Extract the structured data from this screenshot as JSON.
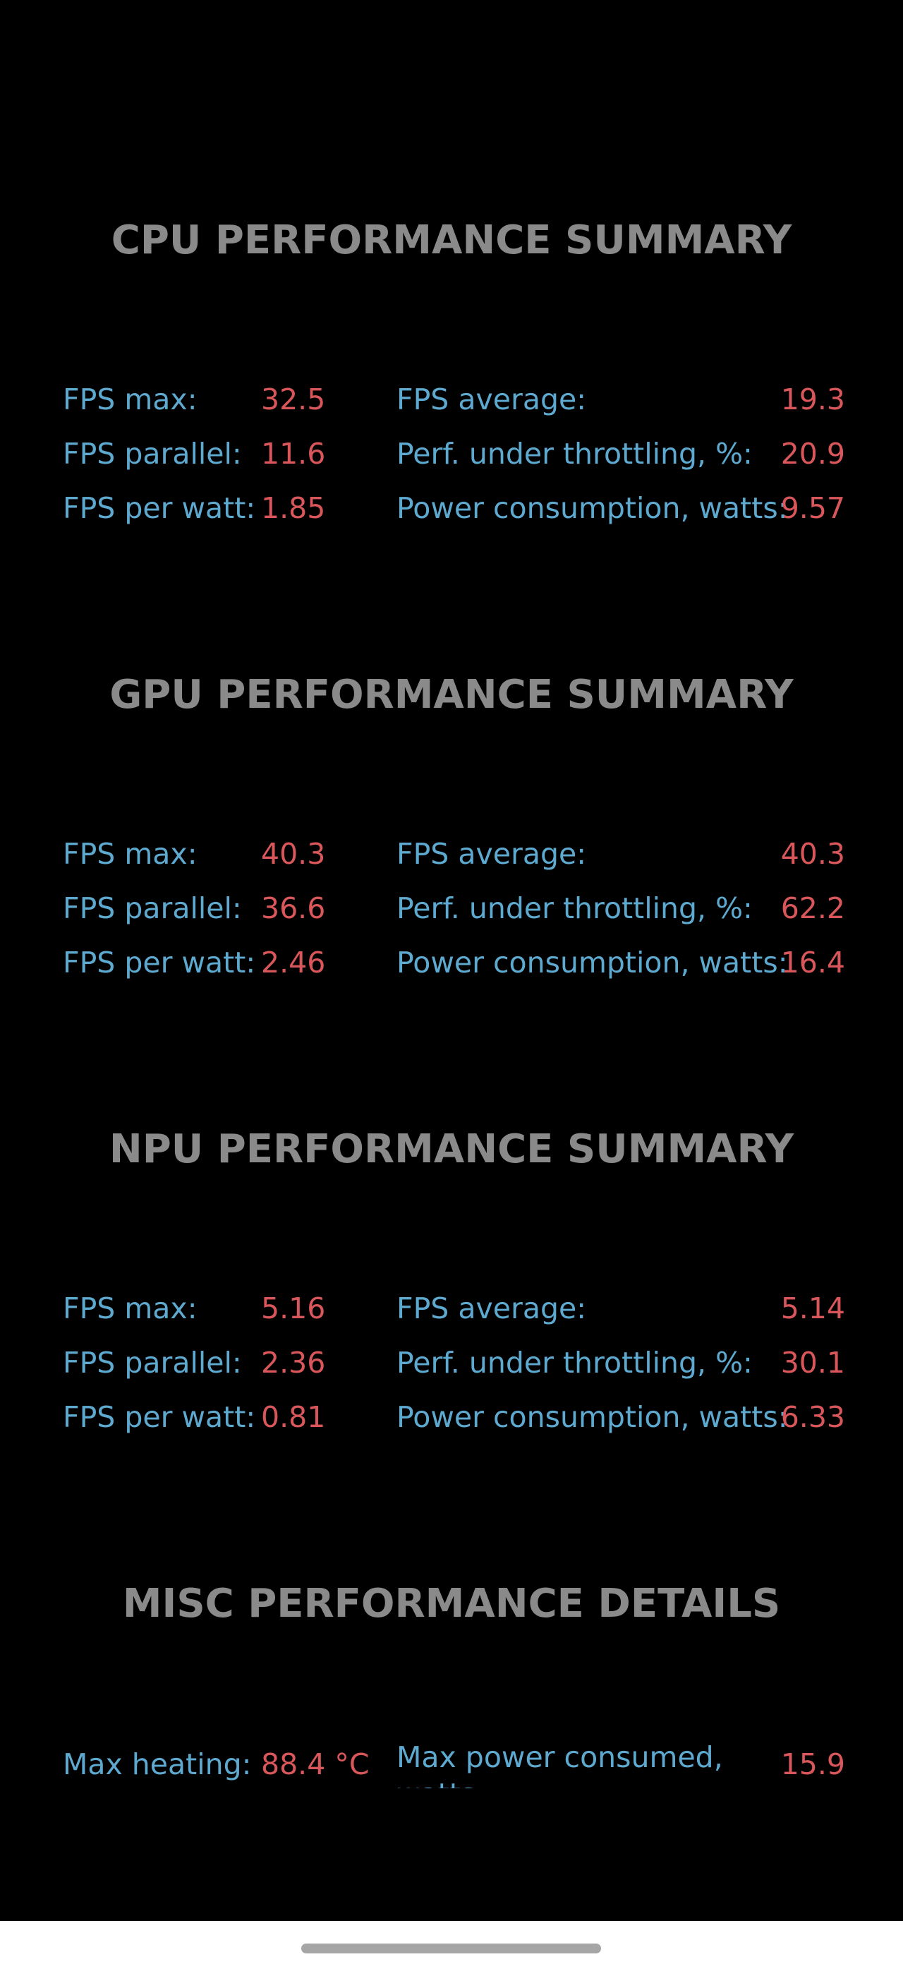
{
  "cpu": {
    "title": "CPU PERFORMANCE SUMMARY",
    "fps_max_label": "FPS max:",
    "fps_max": "32.5",
    "fps_parallel_label": "FPS parallel:",
    "fps_parallel": "11.6",
    "fps_per_watt_label": "FPS per watt:",
    "fps_per_watt": "1.85",
    "fps_average_label": "FPS average:",
    "fps_average": "19.3",
    "throttling_label": "Perf. under throttling, %:",
    "throttling": "20.9",
    "power_label": "Power consumption, watts:",
    "power": "9.57"
  },
  "gpu": {
    "title": "GPU PERFORMANCE SUMMARY",
    "fps_max_label": "FPS max:",
    "fps_max": "40.3",
    "fps_parallel_label": "FPS parallel:",
    "fps_parallel": "36.6",
    "fps_per_watt_label": "FPS per watt:",
    "fps_per_watt": "2.46",
    "fps_average_label": "FPS average:",
    "fps_average": "40.3",
    "throttling_label": "Perf. under throttling, %:",
    "throttling": "62.2",
    "power_label": "Power consumption, watts:",
    "power": "16.4"
  },
  "npu": {
    "title": "NPU PERFORMANCE SUMMARY",
    "fps_max_label": "FPS max:",
    "fps_max": "5.16",
    "fps_parallel_label": "FPS parallel:",
    "fps_parallel": "2.36",
    "fps_per_watt_label": "FPS per watt:",
    "fps_per_watt": "0.81",
    "fps_average_label": "FPS average:",
    "fps_average": "5.14",
    "throttling_label": "Perf. under throttling, %:",
    "throttling": "30.1",
    "power_label": "Power consumption, watts:",
    "power": "6.33"
  },
  "misc": {
    "title": "MISC PERFORMANCE DETAILS",
    "max_heating_label": "Max heating:",
    "max_heating": "88.4 °C",
    "max_power_label": "Max power consumed, watts:",
    "max_power": "15.9"
  },
  "colors": {
    "background": "#000000",
    "title": "#8a8a8a",
    "label": "#5ea9cf",
    "value": "#d9575a",
    "nav_bar": "#ffffff",
    "home_indicator": "#a6a6a6"
  }
}
